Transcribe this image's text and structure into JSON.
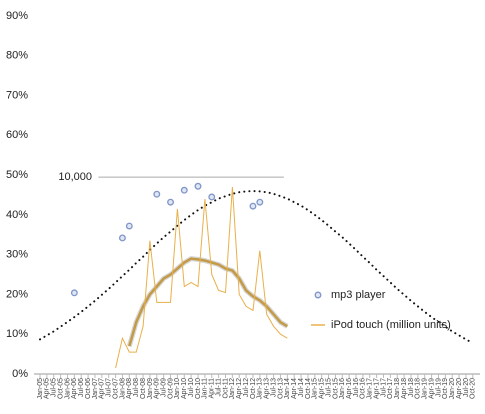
{
  "chart_data": {
    "type": "line",
    "categories": [
      "Jan-05",
      "Apr-05",
      "Jul-05",
      "Oct-05",
      "Jan-06",
      "Apr-06",
      "Jul-06",
      "Oct-06",
      "Jan-07",
      "Apr-07",
      "Jul-07",
      "Oct-07",
      "Jan-08",
      "Apr-08",
      "Jul-08",
      "Oct-08",
      "Jan-09",
      "Apr-09",
      "Jul-09",
      "Oct-09",
      "Jan-10",
      "Apr-10",
      "Jul-10",
      "Oct-10",
      "Jan-11",
      "Apr-11",
      "Jul-11",
      "Oct-11",
      "Jan-12",
      "Apr-12",
      "Jul-12",
      "Oct-12",
      "Jan-13",
      "Apr-13",
      "Jul-13",
      "Oct-13",
      "Jan-14",
      "Apr-14",
      "Jul-14",
      "Oct-14",
      "Jan-15",
      "Apr-15",
      "Jul-15",
      "Oct-15",
      "Jan-16",
      "Apr-16",
      "Jul-16",
      "Oct-16",
      "Jan-17",
      "Apr-17",
      "Jul-17",
      "Oct-17",
      "Jan-18",
      "Apr-18",
      "Jul-18",
      "Oct-18",
      "Jan-19",
      "Apr-19",
      "Jul-19",
      "Oct-19",
      "Jan-20",
      "Apr-20",
      "Jul-20",
      "Oct-20"
    ],
    "ylim": [
      0,
      90
    ],
    "yticks": [
      {
        "value": 0,
        "label": "0%"
      },
      {
        "value": 10,
        "label": "10%"
      },
      {
        "value": 20,
        "label": "20%"
      },
      {
        "value": 30,
        "label": "30%"
      },
      {
        "value": 40,
        "label": "40%"
      },
      {
        "value": 50,
        "label": "50%"
      },
      {
        "value": 60,
        "label": "60%"
      },
      {
        "value": 70,
        "label": "70%"
      },
      {
        "value": 80,
        "label": "80%"
      },
      {
        "value": 90,
        "label": "90%"
      }
    ],
    "reference_line": {
      "value": 49.5,
      "label": "10,000"
    },
    "series": [
      {
        "name": "mp3 player",
        "style": "markers",
        "color": "#7f96c8",
        "values": [
          null,
          null,
          null,
          null,
          null,
          20.4,
          null,
          null,
          null,
          null,
          null,
          null,
          34.2,
          37.2,
          null,
          null,
          null,
          45.2,
          null,
          43.2,
          null,
          46.2,
          null,
          47.2,
          null,
          44.5,
          null,
          null,
          null,
          null,
          null,
          42.2,
          43.2,
          null,
          null,
          null,
          null,
          null,
          null,
          null,
          null,
          null,
          null,
          null,
          null,
          null,
          null,
          null,
          null,
          null,
          null,
          null,
          null,
          null,
          null,
          null,
          null,
          null,
          null,
          null,
          null,
          null,
          null,
          null
        ]
      },
      {
        "name": "iPod touch (million units)",
        "style": "thin",
        "color": "#e8b04a",
        "values": [
          null,
          null,
          null,
          null,
          null,
          null,
          null,
          null,
          null,
          null,
          null,
          1.5,
          9,
          5.5,
          5.5,
          12,
          33.5,
          18,
          18,
          18,
          41.5,
          22,
          23,
          22,
          44,
          25,
          21,
          20.5,
          47,
          20,
          17,
          16,
          31,
          15,
          12,
          10,
          9,
          null,
          null,
          null,
          null,
          null,
          null,
          null,
          null,
          null,
          null,
          null,
          null,
          null,
          null,
          null,
          null,
          null,
          null,
          null,
          null,
          null,
          null,
          null,
          null,
          null,
          null,
          null
        ]
      },
      {
        "style": "thick",
        "color": "#c39a45",
        "values": [
          null,
          null,
          null,
          null,
          null,
          null,
          null,
          null,
          null,
          null,
          null,
          null,
          null,
          7,
          13,
          17,
          20,
          22,
          24,
          25,
          26.5,
          28,
          29,
          28.8,
          28.5,
          28,
          27.5,
          26.5,
          26,
          24,
          21,
          19.5,
          18.5,
          17,
          15,
          13,
          12,
          null,
          null,
          null,
          null,
          null,
          null,
          null,
          null,
          null,
          null,
          null,
          null,
          null,
          null,
          null,
          null,
          null,
          null,
          null,
          null,
          null,
          null,
          null,
          null,
          null,
          null,
          null
        ]
      },
      {
        "style": "dotted",
        "color": "#111111",
        "values": [
          8.7,
          9.7,
          10.7,
          11.9,
          13.1,
          14.3,
          15.6,
          17.0,
          18.4,
          19.9,
          21.4,
          23.0,
          24.6,
          26.2,
          27.9,
          29.5,
          31.2,
          32.8,
          34.4,
          35.8,
          37.3,
          38.7,
          40.0,
          41.2,
          42.3,
          43.2,
          44.1,
          44.7,
          45.3,
          45.7,
          45.9,
          46,
          45.9,
          45.7,
          45.3,
          44.7,
          44.1,
          43.2,
          42.3,
          41.2,
          40.0,
          38.7,
          37.3,
          35.8,
          34.4,
          32.8,
          31.2,
          29.5,
          27.9,
          26.2,
          24.6,
          23.0,
          21.4,
          19.9,
          18.4,
          17.0,
          15.6,
          14.3,
          13.1,
          11.9,
          10.7,
          9.7,
          8.7,
          7.8
        ]
      }
    ]
  }
}
